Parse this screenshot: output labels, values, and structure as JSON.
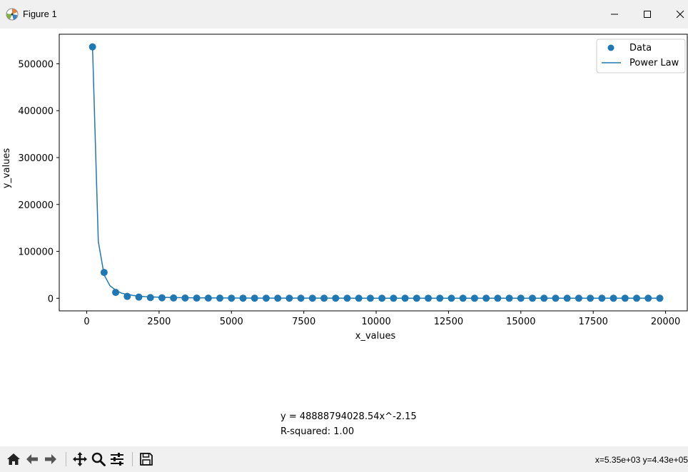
{
  "window": {
    "title": "Figure 1",
    "controls": [
      "minimize",
      "maximize",
      "close"
    ]
  },
  "chart_data": {
    "type": "scatter",
    "title": "",
    "xlabel": "x_values",
    "ylabel": "y_values",
    "xlim": [
      -950,
      20750
    ],
    "ylim": [
      -26900,
      563000
    ],
    "xticks": [
      0,
      2500,
      5000,
      7500,
      10000,
      12500,
      15000,
      17500,
      20000
    ],
    "yticks": [
      0,
      100000,
      200000,
      300000,
      400000,
      500000
    ],
    "legend": {
      "position": "top-right"
    },
    "series": [
      {
        "name": "Data",
        "kind": "scatter",
        "color": "#1f77b4",
        "x": [
          200,
          600,
          1000,
          1400,
          1800,
          2200,
          2600,
          3000,
          3400,
          3800,
          4200,
          4600,
          5000,
          5400,
          5800,
          6200,
          6600,
          7000,
          7400,
          7800,
          8200,
          8600,
          9000,
          9400,
          9800,
          10200,
          10600,
          11000,
          11400,
          11800,
          12200,
          12600,
          13000,
          13400,
          13800,
          14200,
          14600,
          15000,
          15400,
          15800,
          16200,
          16600,
          17000,
          17400,
          17800,
          18200,
          18600,
          19000,
          19400,
          19800
        ],
        "y": [
          536000,
          55000,
          12500,
          4000,
          2500,
          1400,
          900,
          600,
          450,
          350,
          280,
          220,
          180,
          150,
          130,
          110,
          95,
          85,
          75,
          65,
          60,
          55,
          50,
          45,
          40,
          38,
          35,
          32,
          30,
          28,
          26,
          25,
          23,
          22,
          21,
          20,
          19,
          18,
          17,
          16,
          15,
          15,
          14,
          13,
          13,
          12,
          12,
          11,
          11,
          10
        ]
      },
      {
        "name": "Power Law",
        "kind": "line",
        "color": "#1f77b4",
        "x": [
          200,
          400,
          600,
          800,
          1000,
          1200,
          1400,
          1600,
          1800,
          2000,
          2500,
          3000,
          3500,
          4000,
          5000,
          6000,
          8000,
          10000,
          12500,
          15000,
          17500,
          19800
        ],
        "y": [
          536000,
          121000,
          50000,
          27000,
          17000,
          11000,
          8000,
          6000,
          4500,
          3500,
          2200,
          1500,
          1100,
          850,
          530,
          360,
          200,
          125,
          78,
          53,
          38,
          29
        ]
      }
    ],
    "annotations": [
      "y = 48888794028.54x^-2.15",
      "R-squared: 1.00"
    ]
  },
  "toolbar": {
    "buttons": [
      "home-icon",
      "back-icon",
      "forward-icon",
      "pan-icon",
      "zoom-icon",
      "configure-subplots-icon",
      "save-icon"
    ],
    "coords": "x=5.35e+03 y=4.43e+05"
  }
}
